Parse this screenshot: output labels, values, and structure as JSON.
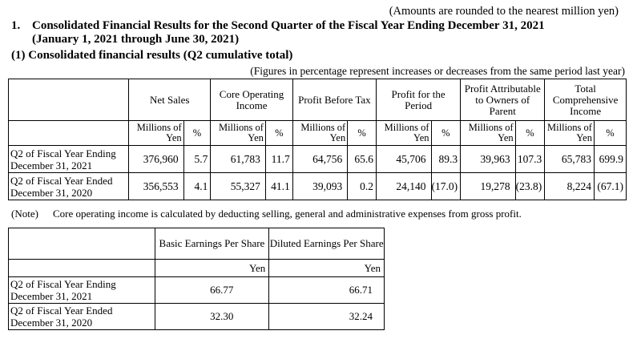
{
  "amounts_note": "(Amounts are rounded to the nearest million yen)",
  "section_number": "1.",
  "section_title_line1": "Consolidated Financial Results for the Second Quarter of the Fiscal Year Ending December 31, 2021",
  "section_title_line2": "(January 1, 2021 through June 30, 2021)",
  "subsection_title": "(1) Consolidated financial results (Q2 cumulative total)",
  "figures_note": "(Figures in percentage represent increases or decreases from the same period last year)",
  "table1": {
    "headers": [
      "Net Sales",
      "Core Operating Income",
      "Profit Before Tax",
      "Profit for the Period",
      "Profit Attributable to Owners of Parent",
      "Total Comprehensive Income"
    ],
    "unit_value": "Millions of Yen",
    "unit_pct": "%",
    "rows": [
      {
        "label_line1": "Q2 of Fiscal Year Ending",
        "label_line2": "December 31, 2021",
        "cells": [
          [
            "376,960",
            "5.7"
          ],
          [
            "61,783",
            "11.7"
          ],
          [
            "64,756",
            "65.6"
          ],
          [
            "45,706",
            "89.3"
          ],
          [
            "39,963",
            "107.3"
          ],
          [
            "65,783",
            "699.9"
          ]
        ]
      },
      {
        "label_line1": "Q2 of Fiscal Year Ended",
        "label_line2": "December 31, 2020",
        "cells": [
          [
            "356,553",
            "4.1"
          ],
          [
            "55,327",
            "41.1"
          ],
          [
            "39,093",
            "0.2"
          ],
          [
            "24,140",
            "(17.0)"
          ],
          [
            "19,278",
            "(23.8)"
          ],
          [
            "8,224",
            "(67.1)"
          ]
        ]
      }
    ]
  },
  "note_label": "(Note)",
  "note_text": "Core operating income is calculated by deducting selling, general and administrative expenses from gross profit.",
  "table2": {
    "headers": [
      "Basic Earnings Per Share",
      "Diluted Earnings Per Share"
    ],
    "unit": "Yen",
    "rows": [
      {
        "label_line1": "Q2 of Fiscal Year Ending",
        "label_line2": "December 31, 2021",
        "values": [
          "66.77",
          "66.71"
        ]
      },
      {
        "label_line1": "Q2 of Fiscal Year Ended",
        "label_line2": "December 31, 2020",
        "values": [
          "32.30",
          "32.24"
        ]
      }
    ]
  }
}
